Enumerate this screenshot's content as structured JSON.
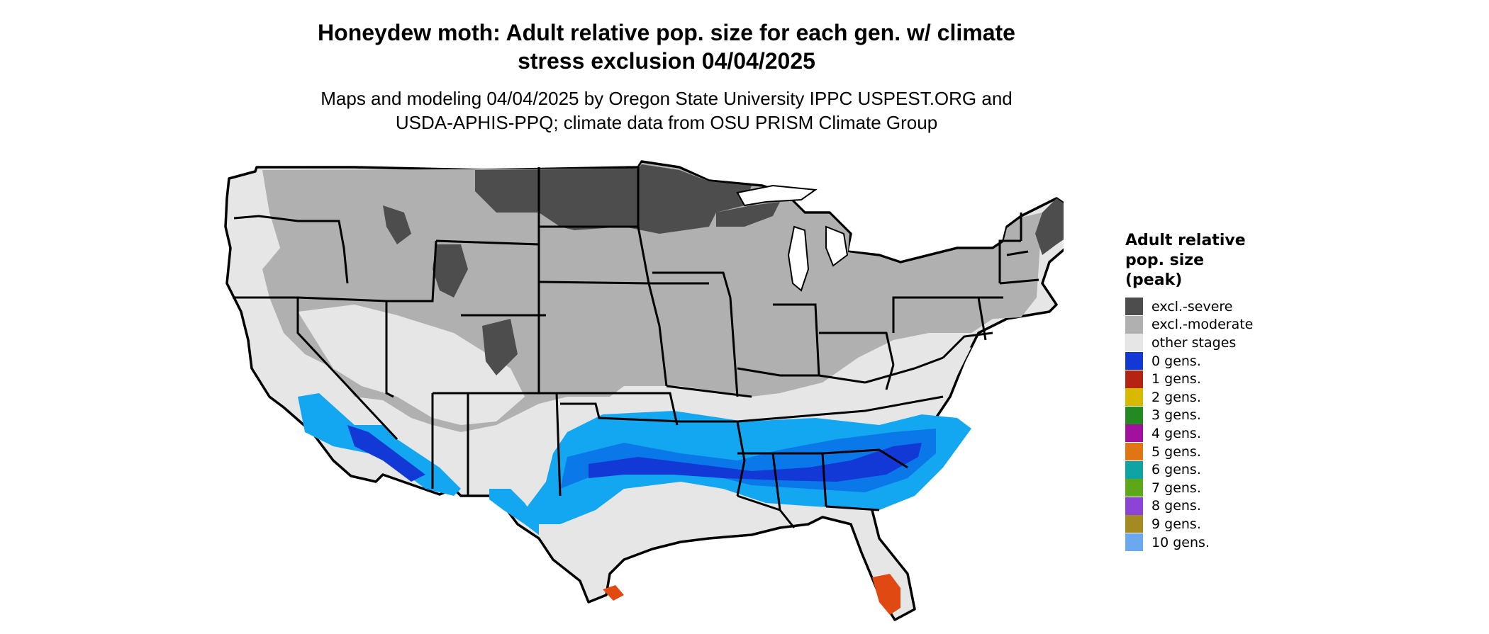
{
  "title": {
    "line1": "Honeydew moth: Adult relative pop. size for each gen. w/ climate",
    "line2": "stress exclusion 04/04/2025"
  },
  "subtitle": {
    "line1": "Maps and modeling 04/04/2025 by Oregon State University IPPC USPEST.ORG and",
    "line2": "USDA-APHIS-PPQ; climate data from OSU PRISM Climate Group"
  },
  "legend": {
    "title_line1": "Adult relative",
    "title_line2": "pop. size",
    "title_line3": "(peak)",
    "items": [
      {
        "label": "excl.-severe",
        "color": "#4d4d4d"
      },
      {
        "label": "excl.-moderate",
        "color": "#b0b0b0"
      },
      {
        "label": "other stages",
        "color": "#e6e6e6"
      },
      {
        "label": "0 gens.",
        "color": "#1238d6"
      },
      {
        "label": "1 gens.",
        "color": "#b52412"
      },
      {
        "label": "2 gens.",
        "color": "#d9b900"
      },
      {
        "label": "3 gens.",
        "color": "#238a22"
      },
      {
        "label": "4 gens.",
        "color": "#a2119e"
      },
      {
        "label": "5 gens.",
        "color": "#e07514"
      },
      {
        "label": "6 gens.",
        "color": "#0fa3a3"
      },
      {
        "label": "7 gens.",
        "color": "#5da818"
      },
      {
        "label": "8 gens.",
        "color": "#8c44d8"
      },
      {
        "label": "9 gens.",
        "color": "#a38a21"
      },
      {
        "label": "10 gens.",
        "color": "#6aa9ee"
      }
    ]
  },
  "map_colors": {
    "excl_severe": "#4d4d4d",
    "excl_moderate": "#b0b0b0",
    "other_stages": "#e6e6e6",
    "zero_gens": "#1238d6",
    "zero_gens_light": "#12a7f0",
    "zero_gens_mid": "#0a78e8",
    "one_gens": "#e04a12",
    "boundary": "#000000"
  }
}
